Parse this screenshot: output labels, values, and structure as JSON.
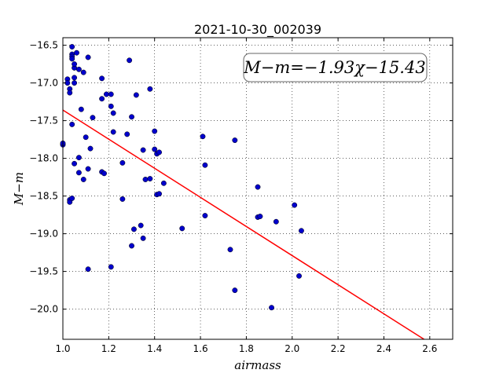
{
  "chart_data": {
    "type": "scatter",
    "title": "2021-10-30_002039",
    "xlabel": "airmass",
    "ylabel": "M−m",
    "xlim": [
      1.0,
      2.7
    ],
    "ylim": [
      -20.4,
      -16.4
    ],
    "y_inverted": true,
    "x_ticks": [
      1.0,
      1.2,
      1.4,
      1.6,
      1.8,
      2.0,
      2.2,
      2.4,
      2.6
    ],
    "x_tick_labels": [
      "1.0",
      "1.2",
      "1.4",
      "1.6",
      "1.8",
      "2.0",
      "2.2",
      "2.4",
      "2.6"
    ],
    "y_ticks": [
      -16.5,
      -17.0,
      -17.5,
      -18.0,
      -18.5,
      -19.0,
      -19.5,
      -20.0
    ],
    "y_tick_labels": [
      "−16.5",
      "−17.0",
      "−17.5",
      "−18.0",
      "−18.5",
      "−19.0",
      "−19.5",
      "−20.0"
    ],
    "grid": true,
    "annotation": "M−m=−1.93χ−15.43",
    "fit": {
      "slope": -1.93,
      "intercept": -15.43,
      "color": "#ff0000"
    },
    "point_color": "#0000cc",
    "points": [
      [
        1.0,
        -17.82
      ],
      [
        1.0,
        -17.8
      ],
      [
        1.02,
        -16.95
      ],
      [
        1.02,
        -17.0
      ],
      [
        1.03,
        -17.08
      ],
      [
        1.03,
        -17.13
      ],
      [
        1.03,
        -18.55
      ],
      [
        1.03,
        -18.58
      ],
      [
        1.04,
        -18.53
      ],
      [
        1.04,
        -16.52
      ],
      [
        1.04,
        -16.62
      ],
      [
        1.04,
        -16.65
      ],
      [
        1.04,
        -16.68
      ],
      [
        1.05,
        -16.8
      ],
      [
        1.05,
        -16.75
      ],
      [
        1.05,
        -16.93
      ],
      [
        1.06,
        -16.6
      ],
      [
        1.05,
        -17.0
      ],
      [
        1.04,
        -17.55
      ],
      [
        1.05,
        -18.07
      ],
      [
        1.07,
        -16.82
      ],
      [
        1.09,
        -16.86
      ],
      [
        1.11,
        -16.66
      ],
      [
        1.08,
        -17.35
      ],
      [
        1.07,
        -17.99
      ],
      [
        1.07,
        -18.19
      ],
      [
        1.09,
        -18.28
      ],
      [
        1.1,
        -17.72
      ],
      [
        1.11,
        -18.14
      ],
      [
        1.12,
        -17.87
      ],
      [
        1.13,
        -17.46
      ],
      [
        1.11,
        -19.47
      ],
      [
        1.17,
        -16.94
      ],
      [
        1.17,
        -17.21
      ],
      [
        1.19,
        -17.15
      ],
      [
        1.21,
        -17.15
      ],
      [
        1.21,
        -17.31
      ],
      [
        1.22,
        -17.4
      ],
      [
        1.22,
        -17.65
      ],
      [
        1.17,
        -18.18
      ],
      [
        1.18,
        -18.2
      ],
      [
        1.21,
        -19.44
      ],
      [
        1.26,
        -18.06
      ],
      [
        1.26,
        -18.54
      ],
      [
        1.28,
        -17.68
      ],
      [
        1.29,
        -16.7
      ],
      [
        1.3,
        -17.45
      ],
      [
        1.32,
        -17.16
      ],
      [
        1.31,
        -18.94
      ],
      [
        1.3,
        -19.16
      ],
      [
        1.34,
        -18.89
      ],
      [
        1.35,
        -19.06
      ],
      [
        1.35,
        -17.89
      ],
      [
        1.36,
        -18.28
      ],
      [
        1.38,
        -18.27
      ],
      [
        1.38,
        -17.08
      ],
      [
        1.4,
        -17.64
      ],
      [
        1.4,
        -17.88
      ],
      [
        1.41,
        -17.94
      ],
      [
        1.42,
        -17.92
      ],
      [
        1.41,
        -18.48
      ],
      [
        1.42,
        -18.47
      ],
      [
        1.44,
        -18.33
      ],
      [
        1.52,
        -18.93
      ],
      [
        1.61,
        -17.71
      ],
      [
        1.62,
        -18.09
      ],
      [
        1.62,
        -18.76
      ],
      [
        1.73,
        -19.21
      ],
      [
        1.75,
        -19.75
      ],
      [
        1.75,
        -17.76
      ],
      [
        1.85,
        -18.38
      ],
      [
        1.85,
        -18.78
      ],
      [
        1.86,
        -18.77
      ],
      [
        1.91,
        -19.98
      ],
      [
        1.93,
        -18.84
      ],
      [
        2.01,
        -18.62
      ],
      [
        2.03,
        -19.56
      ],
      [
        2.04,
        -18.96
      ]
    ]
  }
}
